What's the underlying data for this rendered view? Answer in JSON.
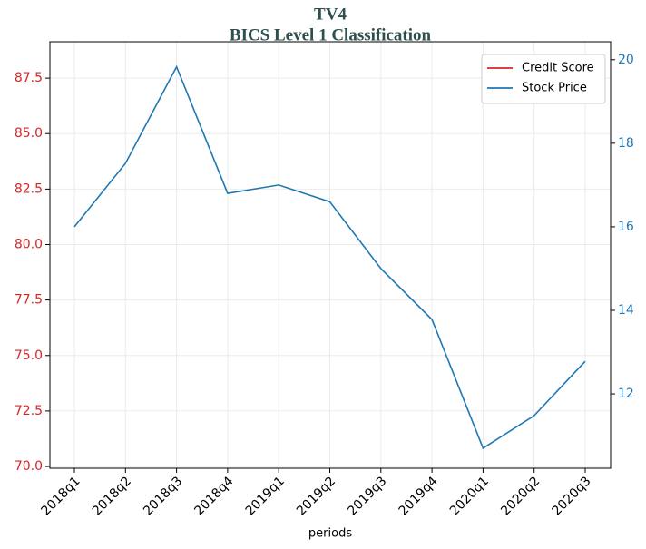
{
  "chart_data": {
    "type": "line",
    "title": "TV4",
    "subtitle": "BICS Level 1 Classification",
    "xlabel": "periods",
    "categories": [
      "2018q1",
      "2018q2",
      "2018q3",
      "2018q4",
      "2019q1",
      "2019q2",
      "2019q3",
      "2019q4",
      "2020q1",
      "2020q2",
      "2020q3"
    ],
    "series": [
      {
        "name": "Credit Score",
        "color": "#d62728",
        "axis": "y",
        "values": [
          null,
          null,
          null,
          null,
          null,
          null,
          null,
          null,
          null,
          null,
          null
        ]
      },
      {
        "name": "Stock Price",
        "color": "#1f77b4",
        "axis": "y2",
        "values": [
          16.0,
          17.52,
          19.83,
          16.8,
          17.0,
          16.6,
          15.0,
          13.78,
          10.7,
          11.48,
          12.78
        ]
      }
    ],
    "ylim": [
      69.92,
      89.14
    ],
    "yticks": [
      {
        "value": 70,
        "label": "70.0"
      },
      {
        "value": 72.5,
        "label": "72.5"
      },
      {
        "value": 75,
        "label": "75.0"
      },
      {
        "value": 77.5,
        "label": "77.5"
      },
      {
        "value": 80,
        "label": "80.0"
      },
      {
        "value": 82.5,
        "label": "82.5"
      },
      {
        "value": 85,
        "label": "85.0"
      },
      {
        "value": 87.5,
        "label": "87.5"
      }
    ],
    "y2lim": [
      10.22,
      20.43
    ],
    "y2ticks": [
      12,
      14,
      16,
      18,
      20
    ],
    "grid": true,
    "legend": "upper right"
  }
}
